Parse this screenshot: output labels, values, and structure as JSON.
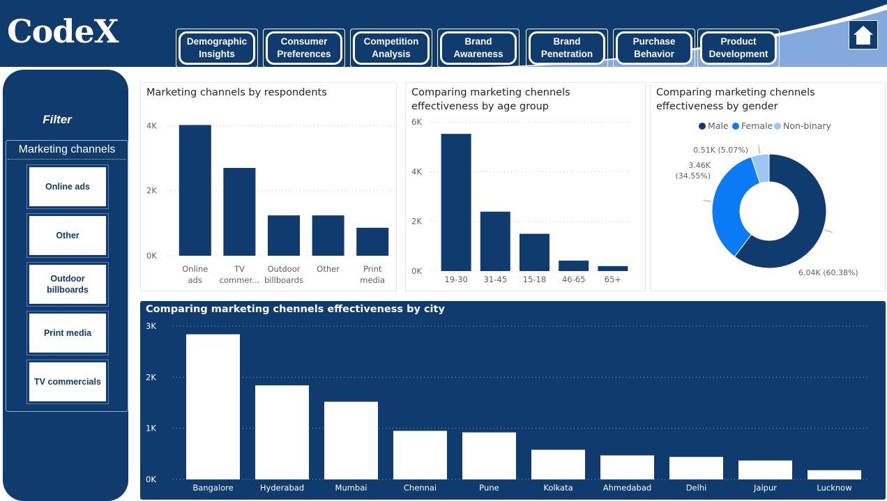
{
  "app": {
    "logo": "CodeX"
  },
  "colors": {
    "navy": "#0f3b6e",
    "blue": "#0a7bf5",
    "light_blue": "#9cc6f5",
    "white": "#ffffff"
  },
  "nav": [
    {
      "label": "Demographic\nInsights"
    },
    {
      "label": "Consumer\nPreferences"
    },
    {
      "label": "Competition\nAnalysis"
    },
    {
      "label": "Brand\nAwareness"
    },
    {
      "label": "Brand\nPenetration"
    },
    {
      "label": "Purchase\nBehavior"
    },
    {
      "label": "Product\nDevelopment"
    }
  ],
  "home": {
    "icon": "home-icon"
  },
  "sidebar": {
    "filter_title": "Filter",
    "slicer_title": "Marketing channels",
    "items": [
      {
        "label": "Online ads"
      },
      {
        "label": "Other"
      },
      {
        "label": "Outdoor\nbillboards"
      },
      {
        "label": "Print media"
      },
      {
        "label": "TV commercials"
      }
    ]
  },
  "panels": {
    "respondents": {
      "title": "Marketing channels by respondents"
    },
    "age": {
      "title": "Comparing marketing chennels\neffectiveness by age group"
    },
    "gender": {
      "title": "Comparing marketing chennels\neffectiveness by gender"
    },
    "city": {
      "title": "Comparing marketing chennels effectiveness by city"
    }
  },
  "chart_data": [
    {
      "type": "bar",
      "title": "Marketing channels by respondents",
      "categories": [
        "Online\nads",
        "TV\ncommer...",
        "Outdoor\nbillboards",
        "Other",
        "Print\nmedia"
      ],
      "values": [
        4020,
        2700,
        1240,
        1240,
        860
      ],
      "ylim": [
        0,
        4500
      ],
      "yticks": [
        {
          "value": 0,
          "label": "0K"
        },
        {
          "value": 2000,
          "label": "2K"
        },
        {
          "value": 4000,
          "label": "4K"
        }
      ],
      "grid": true
    },
    {
      "type": "bar",
      "title": "Comparing marketing chennels effectiveness by age group",
      "categories": [
        "19-30",
        "31-45",
        "15-18",
        "46-65",
        "65+"
      ],
      "values": [
        5520,
        2390,
        1500,
        420,
        200
      ],
      "ylim": [
        0,
        6000
      ],
      "yticks": [
        {
          "value": 0,
          "label": "0K"
        },
        {
          "value": 2000,
          "label": "2K"
        },
        {
          "value": 4000,
          "label": "4K"
        },
        {
          "value": 6000,
          "label": "6K"
        }
      ],
      "grid": true
    },
    {
      "type": "pie",
      "title": "Comparing marketing chennels effectiveness by gender",
      "legend_position": "top",
      "categories": [
        "Male",
        "Female",
        "Non-binary"
      ],
      "values": [
        6040,
        3460,
        510
      ],
      "percents": [
        60.38,
        34.55,
        5.07
      ],
      "data_labels": [
        "6.04K (60.38%)",
        "3.46K\n(34.55%)",
        "0.51K (5.07%)"
      ],
      "colors": [
        "#0f3b6e",
        "#0a7bf5",
        "#9cc6f5"
      ]
    },
    {
      "type": "bar",
      "title": "Comparing marketing chennels effectiveness by city",
      "categories": [
        "Bangalore",
        "Hyderabad",
        "Mumbai",
        "Chennai",
        "Pune",
        "Kolkata",
        "Ahmedabad",
        "Delhi",
        "Jaipur",
        "Lucknow"
      ],
      "values": [
        2840,
        1840,
        1520,
        950,
        920,
        580,
        470,
        440,
        370,
        180
      ],
      "ylim": [
        0,
        3000
      ],
      "yticks": [
        {
          "value": 0,
          "label": "0K"
        },
        {
          "value": 1000,
          "label": "1K"
        },
        {
          "value": 2000,
          "label": "2K"
        },
        {
          "value": 3000,
          "label": "3K"
        }
      ],
      "grid": true
    }
  ]
}
